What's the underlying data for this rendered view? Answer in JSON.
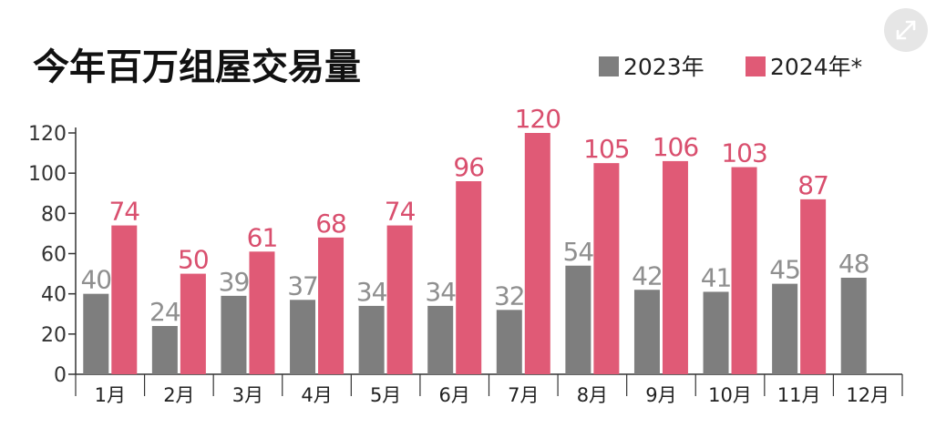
{
  "chart_data": {
    "type": "bar",
    "title": "今年百万组屋交易量",
    "categories": [
      "1月",
      "2月",
      "3月",
      "4月",
      "5月",
      "6月",
      "7月",
      "8月",
      "9月",
      "10月",
      "11月",
      "12月"
    ],
    "series": [
      {
        "name": "2023年",
        "color": "#7e7e7e",
        "values": [
          40,
          24,
          39,
          37,
          34,
          34,
          32,
          54,
          42,
          41,
          45,
          48
        ]
      },
      {
        "name": "2024年*",
        "color": "#e05a76",
        "values": [
          74,
          50,
          61,
          68,
          74,
          96,
          120,
          105,
          106,
          103,
          87,
          null
        ]
      }
    ],
    "ylim": [
      0,
      120
    ],
    "yticks": [
      0,
      20,
      40,
      60,
      80,
      100,
      120
    ],
    "legend": "top-right",
    "grid": false
  },
  "ui": {
    "expand_icon": "expand-icon"
  }
}
